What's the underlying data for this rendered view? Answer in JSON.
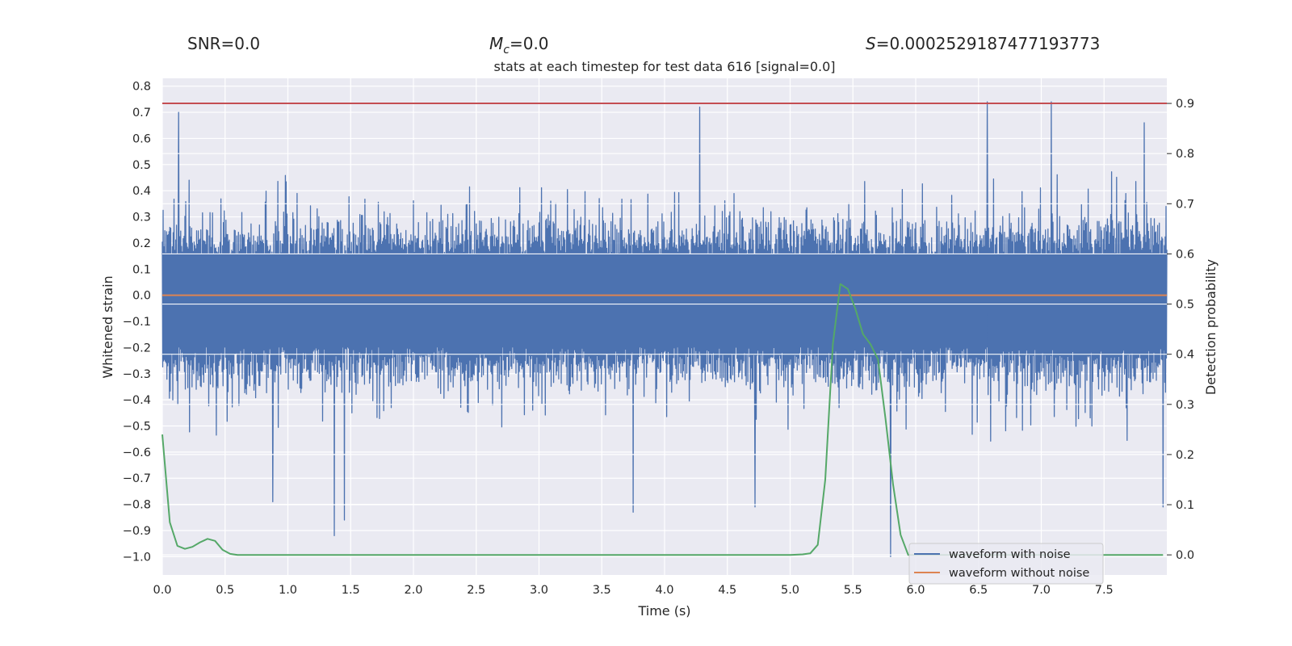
{
  "annotations": {
    "snr": "SNR=0.0",
    "mc_symbol": "M",
    "mc_sub": "c",
    "mc_value": "=0.0",
    "s_symbol": "S",
    "s_value": "=0.0002529187477193773"
  },
  "chart_data": {
    "type": "line",
    "title": "stats at each timestep for test data 616 [signal=0.0]",
    "xlabel": "Time (s)",
    "ylabel": "Whitened strain",
    "y2label": "Detection probability",
    "xlim": [
      0.0,
      8.0
    ],
    "ylim": [
      -1.07,
      0.83
    ],
    "y2lim": [
      -0.04,
      0.95
    ],
    "xticks": [
      "0.0",
      "0.5",
      "1.0",
      "1.5",
      "2.0",
      "2.5",
      "3.0",
      "3.5",
      "4.0",
      "4.5",
      "5.0",
      "5.5",
      "6.0",
      "6.5",
      "7.0",
      "7.5"
    ],
    "yticks": [
      "0.8",
      "0.7",
      "0.6",
      "0.5",
      "0.4",
      "0.3",
      "0.2",
      "0.1",
      "0.0",
      "-0.1",
      "-0.2",
      "-0.3",
      "-0.4",
      "-0.5",
      "-0.6",
      "-0.7",
      "-0.8",
      "-0.9",
      "-1.0"
    ],
    "y2ticks": [
      "0.9",
      "0.8",
      "0.7",
      "0.6",
      "0.5",
      "0.4",
      "0.3",
      "0.2",
      "0.1",
      "0.0"
    ],
    "threshold": {
      "value": 0.9,
      "axis": "y2",
      "color": "#c44e52"
    },
    "series": [
      {
        "name": "waveform with noise",
        "color": "#4c72b0",
        "axis": "y",
        "sample_rate_hz": 2048,
        "envelope_range": [
          -1.0,
          0.74
        ],
        "extremes": [
          {
            "t": 1.37,
            "v": -0.92
          },
          {
            "t": 1.45,
            "v": -0.86
          },
          {
            "t": 0.88,
            "v": -0.79
          },
          {
            "t": 3.75,
            "v": -0.83
          },
          {
            "t": 4.72,
            "v": -0.81
          },
          {
            "t": 5.8,
            "v": -1.0
          },
          {
            "t": 7.97,
            "v": -0.81
          },
          {
            "t": 0.13,
            "v": 0.7
          },
          {
            "t": 4.28,
            "v": 0.72
          },
          {
            "t": 6.57,
            "v": 0.74
          },
          {
            "t": 7.08,
            "v": 0.74
          },
          {
            "t": 7.82,
            "v": 0.66
          }
        ]
      },
      {
        "name": "waveform without noise",
        "color": "#dd8452",
        "axis": "y",
        "constant": 0.0
      },
      {
        "name": "detection probability",
        "color": "#55a868",
        "axis": "y2",
        "x": [
          0.0,
          0.06,
          0.12,
          0.18,
          0.24,
          0.3,
          0.36,
          0.42,
          0.48,
          0.54,
          0.6,
          1.0,
          2.0,
          3.0,
          4.0,
          4.5,
          5.0,
          5.1,
          5.16,
          5.22,
          5.28,
          5.34,
          5.4,
          5.46,
          5.52,
          5.58,
          5.64,
          5.7,
          5.76,
          5.82,
          5.88,
          5.94,
          6.0,
          7.97
        ],
        "y": [
          0.24,
          0.065,
          0.018,
          0.012,
          0.016,
          0.025,
          0.032,
          0.028,
          0.01,
          0.002,
          0.0,
          0.0,
          0.0,
          0.0,
          0.0,
          0.0,
          0.0,
          0.001,
          0.003,
          0.02,
          0.15,
          0.42,
          0.54,
          0.53,
          0.49,
          0.44,
          0.42,
          0.39,
          0.27,
          0.14,
          0.04,
          0.0,
          0.0,
          0.0
        ]
      }
    ],
    "legend": {
      "placement": "lower-right",
      "entries": [
        "waveform with noise",
        "waveform without noise"
      ]
    }
  },
  "colors": {
    "plot_background": "#eaeaf2",
    "grid": "#ffffff",
    "text": "#262626"
  }
}
